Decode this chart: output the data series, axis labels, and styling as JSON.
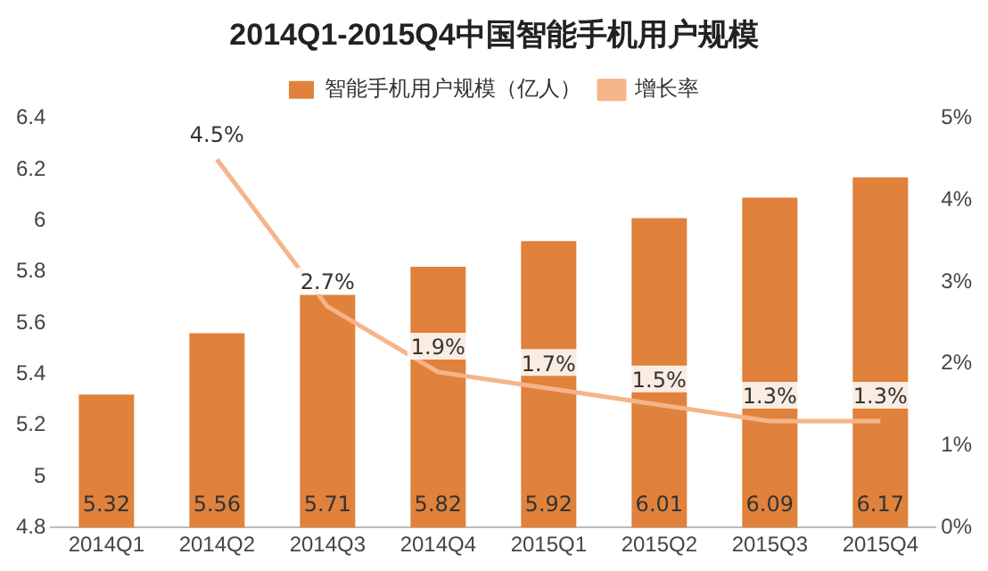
{
  "chart_data": {
    "type": "bar",
    "title": "2014Q1-2015Q4中国智能手机用户规模",
    "categories": [
      "2014Q1",
      "2014Q2",
      "2014Q3",
      "2014Q4",
      "2015Q1",
      "2015Q2",
      "2015Q3",
      "2015Q4"
    ],
    "series": [
      {
        "name": "智能手机用户规模（亿人）",
        "color": "#e0823c",
        "values": [
          5.32,
          5.56,
          5.71,
          5.82,
          5.92,
          6.01,
          6.09,
          6.17
        ],
        "value_labels": [
          "5.32",
          "5.56",
          "5.71",
          "5.82",
          "5.92",
          "6.01",
          "6.09",
          "6.17"
        ]
      },
      {
        "name": "增长率",
        "type": "line",
        "axis": "y2",
        "color": "#f5b48a",
        "values": [
          null,
          4.5,
          2.7,
          1.9,
          1.7,
          1.5,
          1.3,
          1.3
        ],
        "value_labels": [
          null,
          "4.5%",
          "2.7%",
          "1.9%",
          "1.7%",
          "1.5%",
          "1.3%",
          "1.3%"
        ]
      }
    ],
    "ylim": [
      4.8,
      6.4
    ],
    "yticks": [
      4.8,
      5,
      5.2,
      5.4,
      5.6,
      5.8,
      6,
      6.2,
      6.4
    ],
    "y2lim": [
      0,
      5
    ],
    "y2ticks": [
      {
        "value": 0,
        "label": "0%"
      },
      {
        "value": 1,
        "label": "1%"
      },
      {
        "value": 2,
        "label": "2%"
      },
      {
        "value": 3,
        "label": "3%"
      },
      {
        "value": 4,
        "label": "4%"
      },
      {
        "value": 5,
        "label": "5%"
      }
    ],
    "legend": "top",
    "grid": false,
    "marker": "none"
  }
}
